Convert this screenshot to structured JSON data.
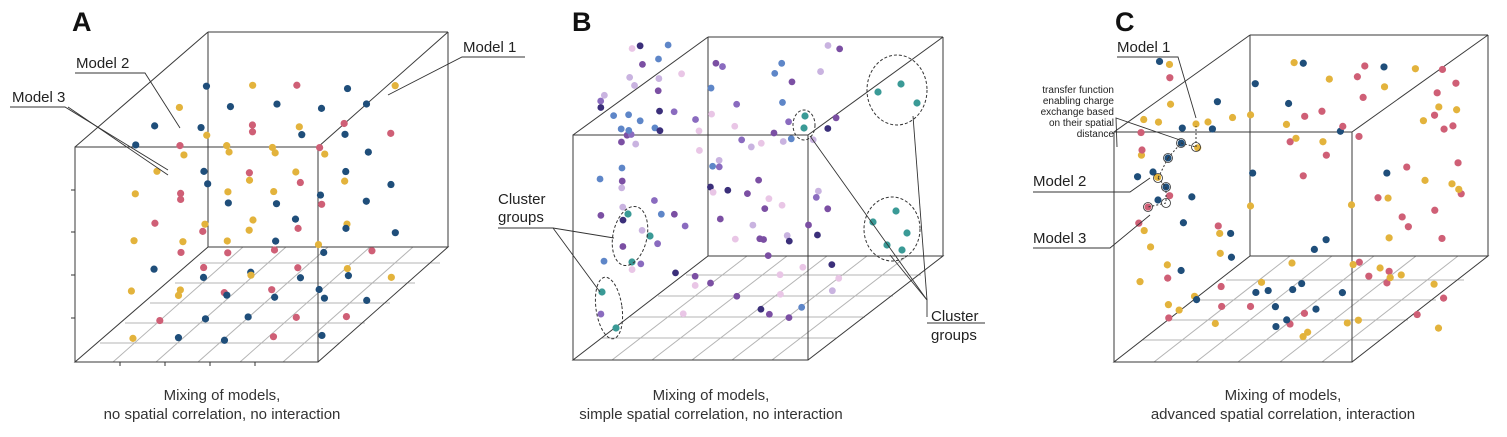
{
  "panels": [
    {
      "letter": "A",
      "labels": {
        "model1": "Model 1",
        "model2": "Model 2",
        "model3": "Model 3"
      },
      "caption_line1": "Mixing of models,",
      "caption_line2": "no spatial correlation, no interaction"
    },
    {
      "letter": "B",
      "labels": {
        "cluster_left_1": "Cluster",
        "cluster_left_2": "groups",
        "cluster_right_1": "Cluster",
        "cluster_right_2": "groups"
      },
      "caption_line1": "Mixing of models,",
      "caption_line2": "simple spatial correlation, no interaction"
    },
    {
      "letter": "C",
      "labels": {
        "model1": "Model 1",
        "model2": "Model 2",
        "model3": "Model 3",
        "tf_line1": "transfer function",
        "tf_line2": "enabling charge",
        "tf_line3": "exchange based",
        "tf_line4": "on their spatial",
        "tf_line5": "distance"
      },
      "caption_line1": "Mixing of models,",
      "caption_line2": "advanced spatial correlation, interaction"
    }
  ],
  "colors": {
    "model1": "#e3b33c",
    "model2": "#1f4e7a",
    "model3": "#cf5f76",
    "cluster_purple": "#7b4fa3",
    "cluster_lavender": "#c9b3e0",
    "cluster_teal": "#3a9a96",
    "cluster_blue": "#5e86c8",
    "edge": "#3a3a3a",
    "grid": "#b4b4b4"
  }
}
